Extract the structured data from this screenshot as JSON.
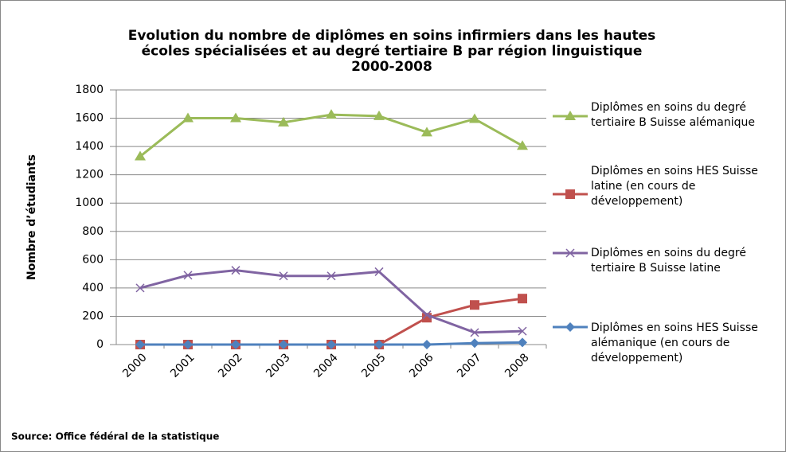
{
  "chart_data": {
    "type": "line",
    "title": [
      "Evolution du nombre de diplômes en soins infirmiers dans les hautes",
      "écoles spécialisées et au degré tertiaire B par région linguistique",
      "2000-2008"
    ],
    "y_label": "Nombre d’étudiants",
    "source": "Source: Office fédéral de la statistique",
    "categories": [
      "2000",
      "2001",
      "2002",
      "2003",
      "2004",
      "2005",
      "2006",
      "2007",
      "2008"
    ],
    "series": [
      {
        "name": "Diplômes en soins du degré tertiaire B Suisse alémanique",
        "color": "#9bbb59",
        "marker": "triangle",
        "values": [
          1330,
          1600,
          1600,
          1570,
          1625,
          1615,
          1500,
          1595,
          1405
        ]
      },
      {
        "name": "Diplômes en soins HES Suisse latine (en cours de développement)",
        "color": "#c0504d",
        "marker": "square",
        "values": [
          0,
          0,
          0,
          0,
          0,
          0,
          190,
          280,
          325
        ]
      },
      {
        "name": "Diplômes en soins du degré tertiaire B Suisse latine",
        "color": "#8064a2",
        "marker": "x",
        "values": [
          400,
          490,
          525,
          485,
          485,
          515,
          210,
          85,
          95
        ]
      },
      {
        "name": "Diplômes en soins HES Suisse alémanique (en cours de développement)",
        "color": "#4f81bd",
        "marker": "diamond",
        "values": [
          0,
          0,
          0,
          0,
          0,
          0,
          0,
          10,
          15
        ]
      }
    ],
    "ylim": [
      0,
      1800
    ],
    "yticks": [
      0,
      200,
      400,
      600,
      800,
      1000,
      1200,
      1400,
      1600,
      1800
    ],
    "grid": true
  }
}
